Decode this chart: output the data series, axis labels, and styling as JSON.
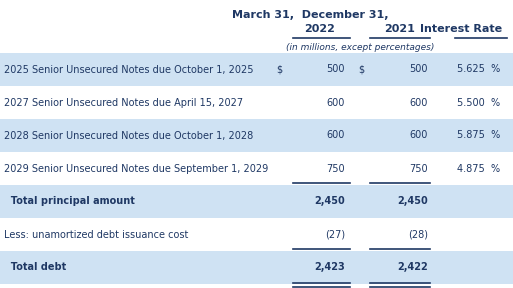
{
  "title": "March 31,  December 31,",
  "col_headers": [
    "2022",
    "2021",
    "Interest Rate"
  ],
  "subheader": "(in millions, except percentages)",
  "rows": [
    {
      "label": "2025 Senior Unsecured Notes due October 1, 2025",
      "dollar1": "$",
      "val1": "500",
      "dollar2": "$",
      "val2": "500",
      "rate": "5.625  %",
      "shaded": true,
      "bold": false,
      "underline": false,
      "double_underline": false
    },
    {
      "label": "2027 Senior Unsecured Notes due April 15, 2027",
      "dollar1": "",
      "val1": "600",
      "dollar2": "",
      "val2": "600",
      "rate": "5.500  %",
      "shaded": false,
      "bold": false,
      "underline": false,
      "double_underline": false
    },
    {
      "label": "2028 Senior Unsecured Notes due October 1, 2028",
      "dollar1": "",
      "val1": "600",
      "dollar2": "",
      "val2": "600",
      "rate": "5.875  %",
      "shaded": true,
      "bold": false,
      "underline": false,
      "double_underline": false
    },
    {
      "label": "2029 Senior Unsecured Notes due September 1, 2029",
      "dollar1": "",
      "val1": "750",
      "dollar2": "",
      "val2": "750",
      "rate": "4.875  %",
      "shaded": false,
      "bold": false,
      "underline": true,
      "double_underline": false
    },
    {
      "label": "  Total principal amount",
      "dollar1": "",
      "val1": "2,450",
      "dollar2": "",
      "val2": "2,450",
      "rate": "",
      "shaded": true,
      "bold": true,
      "underline": false,
      "double_underline": false
    },
    {
      "label": "Less: unamortized debt issuance cost",
      "dollar1": "",
      "val1": "(27)",
      "dollar2": "",
      "val2": "(28)",
      "rate": "",
      "shaded": false,
      "bold": false,
      "underline": true,
      "double_underline": false
    },
    {
      "label": "  Total debt",
      "dollar1": "",
      "val1": "2,423",
      "dollar2": "",
      "val2": "2,422",
      "rate": "",
      "shaded": true,
      "bold": true,
      "underline": false,
      "double_underline": true
    }
  ],
  "bg_color": "#ffffff",
  "shaded_color": "#cfe2f3",
  "text_color": "#1f3864",
  "font_size": 7.0,
  "header_font_size": 8.0,
  "fig_width": 5.13,
  "fig_height": 2.88,
  "dpi": 100
}
